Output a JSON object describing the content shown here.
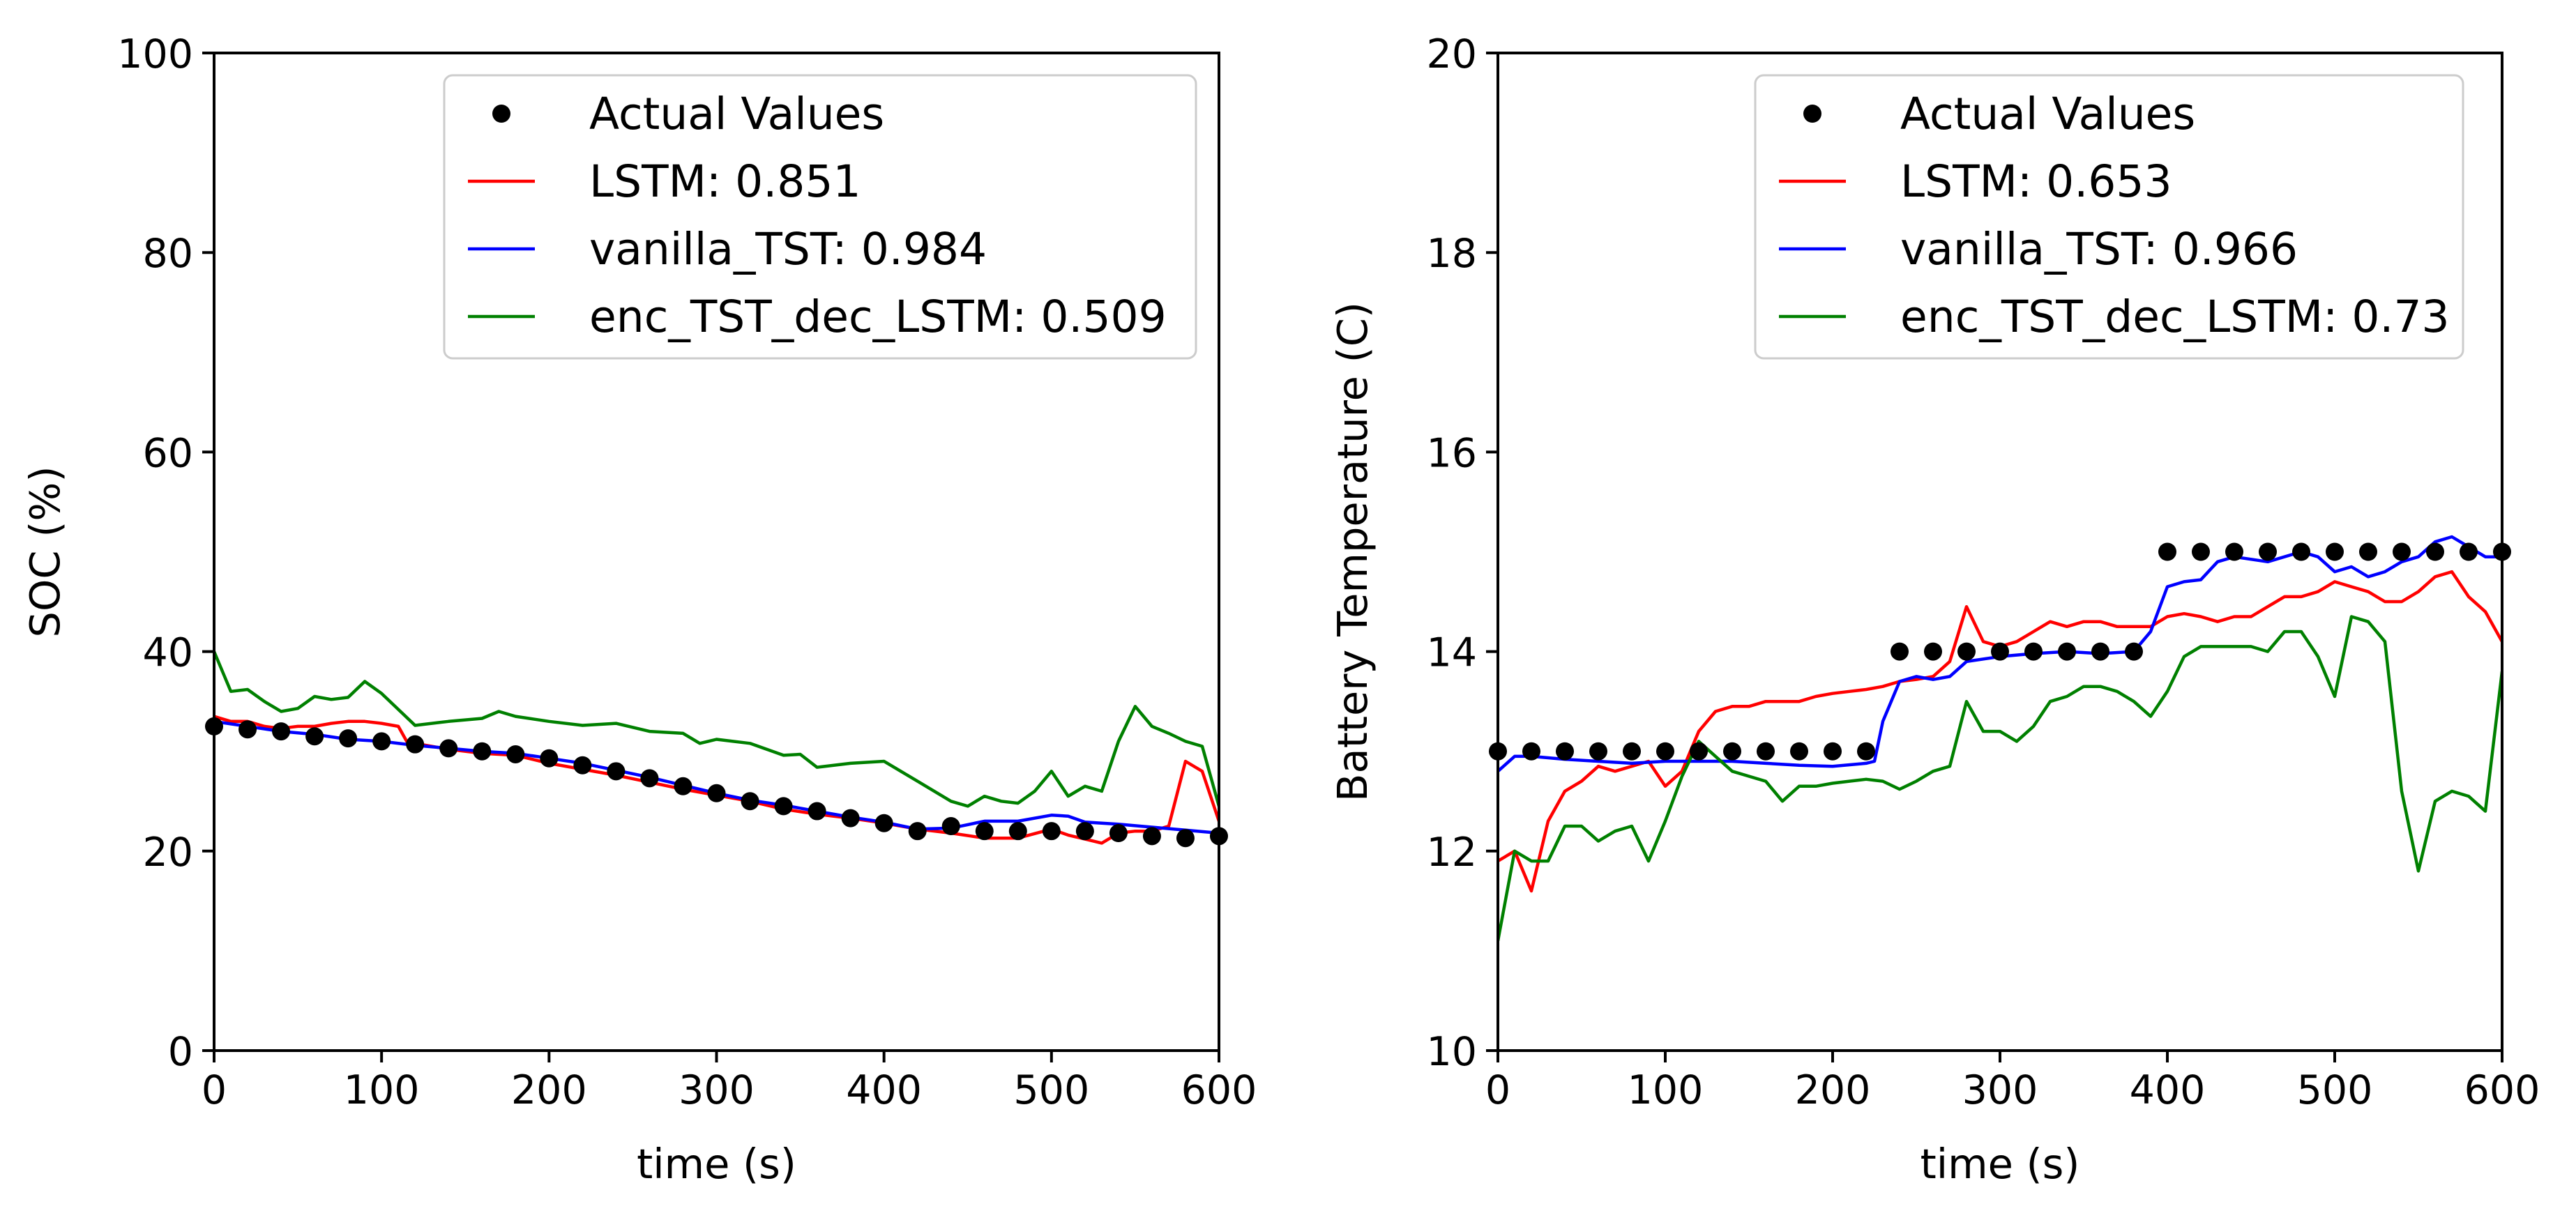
{
  "chart_data": [
    {
      "type": "line",
      "xlabel": "time (s)",
      "ylabel": "SOC (%)",
      "xlim": [
        0,
        600
      ],
      "ylim": [
        0,
        100
      ],
      "xticks": [
        0,
        100,
        200,
        300,
        400,
        500,
        600
      ],
      "yticks": [
        0,
        20,
        40,
        60,
        80,
        100
      ],
      "x_tick_labels": [
        "0",
        "100",
        "200",
        "300",
        "400",
        "500",
        "600"
      ],
      "y_tick_labels": [
        "0",
        "20",
        "40",
        "60",
        "80",
        "100"
      ],
      "legend_position": "top-right",
      "legend": [
        "Actual Values",
        "LSTM: 0.851",
        "vanilla_TST: 0.984",
        "enc_TST_dec_LSTM: 0.509"
      ],
      "actual": {
        "name": "Actual Values",
        "color": "#000000",
        "x": [
          0,
          20,
          40,
          60,
          80,
          100,
          120,
          140,
          160,
          180,
          200,
          220,
          240,
          260,
          280,
          300,
          320,
          340,
          360,
          380,
          400,
          420,
          440,
          460,
          480,
          500,
          520,
          540,
          560,
          580,
          600
        ],
        "y": [
          32.5,
          32.2,
          32.0,
          31.5,
          31.3,
          31.0,
          30.7,
          30.3,
          30.0,
          29.7,
          29.3,
          28.6,
          28.0,
          27.3,
          26.5,
          25.8,
          25.0,
          24.5,
          24.0,
          23.3,
          22.8,
          22.0,
          22.5,
          22.0,
          22.0,
          22.0,
          22.0,
          21.8,
          21.5,
          21.3,
          21.5
        ]
      },
      "series": [
        {
          "name": "LSTM: 0.851",
          "color": "#ff0000",
          "x": [
            0,
            10,
            20,
            30,
            40,
            50,
            60,
            70,
            80,
            90,
            100,
            110,
            115,
            120,
            140,
            160,
            180,
            200,
            220,
            240,
            260,
            280,
            300,
            320,
            340,
            360,
            380,
            400,
            420,
            440,
            460,
            480,
            500,
            510,
            520,
            530,
            540,
            550,
            560,
            570,
            580,
            590,
            600
          ],
          "y": [
            33.5,
            33.0,
            33.0,
            32.5,
            32.3,
            32.5,
            32.5,
            32.8,
            33.0,
            33.0,
            32.8,
            32.5,
            31.0,
            30.8,
            30.2,
            29.8,
            29.6,
            28.8,
            28.2,
            27.6,
            26.9,
            26.2,
            25.6,
            25.0,
            24.2,
            23.7,
            23.3,
            22.8,
            22.2,
            21.8,
            21.3,
            21.3,
            22.2,
            21.6,
            21.2,
            20.8,
            21.8,
            22.0,
            22.0,
            22.5,
            29.0,
            28.0,
            23.0
          ]
        },
        {
          "name": "vanilla_TST: 0.984",
          "color": "#0000ff",
          "x": [
            0,
            20,
            40,
            60,
            80,
            100,
            120,
            140,
            160,
            180,
            200,
            220,
            240,
            260,
            280,
            300,
            320,
            340,
            360,
            380,
            400,
            420,
            440,
            460,
            480,
            500,
            510,
            520,
            540,
            560,
            580,
            600
          ],
          "y": [
            33.0,
            32.5,
            32.0,
            31.7,
            31.2,
            31.0,
            30.6,
            30.3,
            30.0,
            29.8,
            29.3,
            28.8,
            28.1,
            27.4,
            26.6,
            25.8,
            25.1,
            24.6,
            24.0,
            23.4,
            22.9,
            22.2,
            22.3,
            23.0,
            23.0,
            23.6,
            23.5,
            22.9,
            22.7,
            22.4,
            22.1,
            21.8
          ]
        },
        {
          "name": "enc_TST_dec_LSTM: 0.509",
          "color": "#008000",
          "x": [
            0,
            10,
            20,
            30,
            40,
            50,
            60,
            70,
            80,
            90,
            100,
            110,
            120,
            140,
            160,
            170,
            180,
            200,
            220,
            240,
            260,
            280,
            290,
            300,
            320,
            340,
            350,
            360,
            380,
            400,
            420,
            440,
            450,
            460,
            470,
            480,
            490,
            500,
            510,
            520,
            530,
            540,
            550,
            560,
            570,
            580,
            590,
            600
          ],
          "y": [
            40.0,
            36.0,
            36.2,
            35.0,
            34.0,
            34.3,
            35.5,
            35.2,
            35.4,
            37.0,
            35.8,
            34.2,
            32.6,
            33.0,
            33.3,
            34.0,
            33.5,
            33.0,
            32.6,
            32.8,
            32.0,
            31.8,
            30.8,
            31.2,
            30.8,
            29.6,
            29.7,
            28.4,
            28.8,
            29.0,
            27.0,
            25.0,
            24.5,
            25.5,
            25.0,
            24.8,
            26.0,
            28.0,
            25.5,
            26.5,
            26.0,
            31.0,
            34.5,
            32.5,
            31.8,
            31.0,
            30.5,
            24.5
          ]
        }
      ]
    },
    {
      "type": "line",
      "xlabel": "time (s)",
      "ylabel": "Battery Temperature (C)",
      "xlim": [
        0,
        600
      ],
      "ylim": [
        10,
        20
      ],
      "xticks": [
        0,
        100,
        200,
        300,
        400,
        500,
        600
      ],
      "yticks": [
        10,
        12,
        14,
        16,
        18,
        20
      ],
      "x_tick_labels": [
        "0",
        "100",
        "200",
        "300",
        "400",
        "500",
        "600"
      ],
      "y_tick_labels": [
        "10",
        "12",
        "14",
        "16",
        "18",
        "20"
      ],
      "legend_position": "top-right",
      "legend": [
        "Actual Values",
        "LSTM: 0.653",
        "vanilla_TST: 0.966",
        "enc_TST_dec_LSTM: 0.73"
      ],
      "actual": {
        "name": "Actual Values",
        "color": "#000000",
        "x": [
          0,
          20,
          40,
          60,
          80,
          100,
          120,
          140,
          160,
          180,
          200,
          220,
          240,
          260,
          280,
          300,
          320,
          340,
          360,
          380,
          400,
          420,
          440,
          460,
          480,
          500,
          520,
          540,
          560,
          580,
          600
        ],
        "y": [
          13,
          13,
          13,
          13,
          13,
          13,
          13,
          13,
          13,
          13,
          13,
          13,
          14,
          14,
          14,
          14,
          14,
          14,
          14,
          14,
          15,
          15,
          15,
          15,
          15,
          15,
          15,
          15,
          15,
          15,
          15
        ]
      },
      "series": [
        {
          "name": "LSTM: 0.653",
          "color": "#ff0000",
          "x": [
            0,
            10,
            20,
            30,
            40,
            50,
            60,
            70,
            80,
            90,
            100,
            110,
            120,
            130,
            140,
            150,
            160,
            170,
            180,
            190,
            200,
            210,
            220,
            230,
            240,
            250,
            260,
            270,
            280,
            290,
            300,
            310,
            320,
            330,
            340,
            350,
            360,
            370,
            380,
            390,
            400,
            410,
            420,
            430,
            440,
            450,
            460,
            470,
            480,
            490,
            500,
            510,
            520,
            530,
            540,
            550,
            560,
            570,
            580,
            590,
            600
          ],
          "y": [
            11.9,
            12.0,
            11.6,
            12.3,
            12.6,
            12.7,
            12.85,
            12.8,
            12.85,
            12.9,
            12.65,
            12.8,
            13.2,
            13.4,
            13.45,
            13.45,
            13.5,
            13.5,
            13.5,
            13.55,
            13.58,
            13.6,
            13.62,
            13.65,
            13.7,
            13.72,
            13.75,
            13.9,
            14.45,
            14.1,
            14.05,
            14.1,
            14.2,
            14.3,
            14.25,
            14.3,
            14.3,
            14.25,
            14.25,
            14.25,
            14.35,
            14.38,
            14.35,
            14.3,
            14.35,
            14.35,
            14.45,
            14.55,
            14.55,
            14.6,
            14.7,
            14.65,
            14.6,
            14.5,
            14.5,
            14.6,
            14.75,
            14.8,
            14.55,
            14.4,
            14.1
          ]
        },
        {
          "name": "vanilla_TST: 0.966",
          "color": "#0000ff",
          "x": [
            0,
            10,
            20,
            40,
            60,
            80,
            100,
            120,
            140,
            160,
            180,
            200,
            220,
            225,
            230,
            240,
            250,
            260,
            270,
            280,
            300,
            320,
            340,
            360,
            380,
            390,
            400,
            410,
            420,
            430,
            440,
            460,
            480,
            490,
            500,
            510,
            520,
            530,
            540,
            550,
            560,
            570,
            580,
            590,
            600
          ],
          "y": [
            12.8,
            12.95,
            12.95,
            12.92,
            12.9,
            12.88,
            12.9,
            12.9,
            12.9,
            12.88,
            12.86,
            12.85,
            12.88,
            12.9,
            13.3,
            13.7,
            13.75,
            13.72,
            13.75,
            13.9,
            13.95,
            13.98,
            14.0,
            13.98,
            14.0,
            14.2,
            14.65,
            14.7,
            14.72,
            14.9,
            14.95,
            14.9,
            15.0,
            14.95,
            14.8,
            14.85,
            14.75,
            14.8,
            14.9,
            14.95,
            15.1,
            15.15,
            15.05,
            14.95,
            14.95
          ]
        },
        {
          "name": "enc_TST_dec_LSTM: 0.73",
          "color": "#008000",
          "x": [
            0,
            10,
            20,
            30,
            40,
            50,
            60,
            70,
            80,
            90,
            100,
            110,
            120,
            130,
            140,
            150,
            160,
            170,
            180,
            190,
            200,
            210,
            220,
            230,
            240,
            250,
            260,
            270,
            280,
            290,
            300,
            310,
            320,
            330,
            340,
            350,
            360,
            370,
            380,
            390,
            400,
            410,
            420,
            430,
            440,
            450,
            460,
            470,
            480,
            490,
            500,
            510,
            520,
            530,
            540,
            550,
            560,
            570,
            580,
            590,
            600
          ],
          "y": [
            11.1,
            12.0,
            11.9,
            11.9,
            12.25,
            12.25,
            12.1,
            12.2,
            12.25,
            11.9,
            12.3,
            12.75,
            13.1,
            12.95,
            12.8,
            12.75,
            12.7,
            12.5,
            12.65,
            12.65,
            12.68,
            12.7,
            12.72,
            12.7,
            12.62,
            12.7,
            12.8,
            12.85,
            13.5,
            13.2,
            13.2,
            13.1,
            13.25,
            13.5,
            13.55,
            13.65,
            13.65,
            13.6,
            13.5,
            13.35,
            13.6,
            13.95,
            14.05,
            14.05,
            14.05,
            14.05,
            14.0,
            14.2,
            14.2,
            13.95,
            13.55,
            14.35,
            14.3,
            14.1,
            12.6,
            11.8,
            12.5,
            12.6,
            12.55,
            12.4,
            13.8
          ]
        }
      ]
    }
  ]
}
